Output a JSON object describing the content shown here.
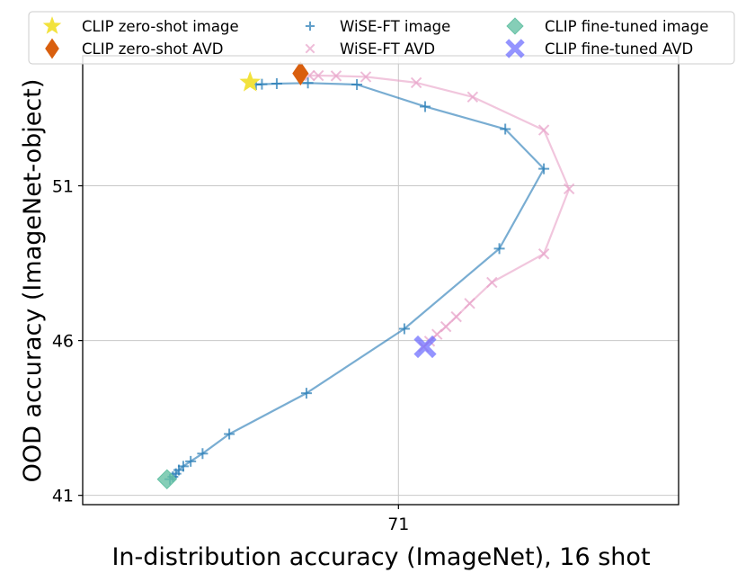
{
  "chart_data": {
    "type": "scatter",
    "title": "",
    "xlabel": "In-distribution accuracy (ImageNet), 16 shot",
    "ylabel": "OOD accuracy (ImageNet-object)",
    "xlim": [
      60.36,
      80.44
    ],
    "ylim": [
      40.7,
      55.2
    ],
    "xticks": [
      71
    ],
    "xtick_labels": [
      "71"
    ],
    "yticks": [
      41,
      46,
      51
    ],
    "ytick_labels": [
      "41",
      "46",
      "51"
    ],
    "grid": true,
    "legend_position": "top",
    "series": [
      {
        "name": "CLIP zero-shot image",
        "marker": "star",
        "color": "#f2e23d",
        "points": [
          [
            66.0,
            54.34
          ]
        ]
      },
      {
        "name": "CLIP zero-shot AVD",
        "marker": "diamond",
        "color": "#d95f0e",
        "points": [
          [
            67.7,
            54.63
          ]
        ]
      },
      {
        "name": "WiSE-FT image",
        "marker": "plus",
        "color": "#1f77b4",
        "line": true,
        "points": [
          [
            63.3,
            41.52
          ],
          [
            63.4,
            41.6
          ],
          [
            63.5,
            41.7
          ],
          [
            63.6,
            41.82
          ],
          [
            63.75,
            41.94
          ],
          [
            64.0,
            42.1
          ],
          [
            64.4,
            42.35
          ],
          [
            65.3,
            42.98
          ],
          [
            67.9,
            44.3
          ],
          [
            71.2,
            46.38
          ],
          [
            74.4,
            48.97
          ],
          [
            75.9,
            51.55
          ],
          [
            74.6,
            52.83
          ],
          [
            71.9,
            53.56
          ],
          [
            69.6,
            54.27
          ],
          [
            67.95,
            54.32
          ],
          [
            66.9,
            54.3
          ],
          [
            66.4,
            54.28
          ],
          [
            66.2,
            54.27
          ]
        ]
      },
      {
        "name": "WiSE-FT AVD",
        "marker": "x",
        "color": "#e7a0c7",
        "line": true,
        "points": [
          [
            71.85,
            45.8
          ],
          [
            72.05,
            45.98
          ],
          [
            72.3,
            46.2
          ],
          [
            72.6,
            46.45
          ],
          [
            72.95,
            46.77
          ],
          [
            73.4,
            47.2
          ],
          [
            74.15,
            47.88
          ],
          [
            75.9,
            48.8
          ],
          [
            76.75,
            50.9
          ],
          [
            75.9,
            52.8
          ],
          [
            73.5,
            53.87
          ],
          [
            71.6,
            54.33
          ],
          [
            69.9,
            54.52
          ],
          [
            68.9,
            54.55
          ],
          [
            68.3,
            54.56
          ],
          [
            68.0,
            54.56
          ]
        ]
      },
      {
        "name": "CLIP fine-tuned image",
        "marker": "diamond",
        "color": "#66c2a5",
        "points": [
          [
            63.2,
            41.52
          ]
        ]
      },
      {
        "name": "CLIP fine-tuned AVD",
        "marker": "plus-bold",
        "color": "#7070ff",
        "points": [
          [
            71.9,
            45.8
          ]
        ]
      }
    ]
  }
}
